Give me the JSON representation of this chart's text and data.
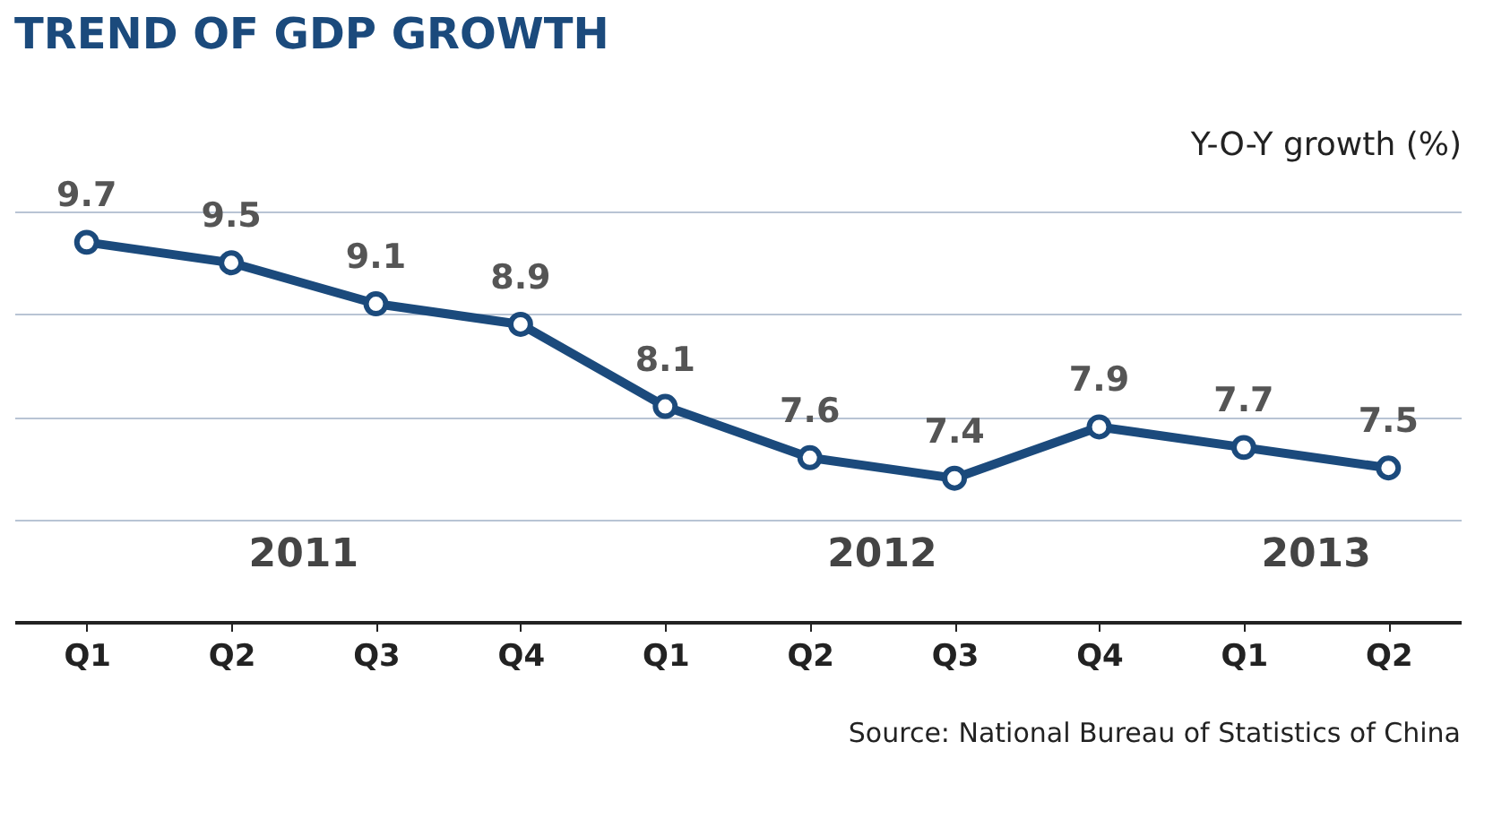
{
  "chart_data": {
    "type": "line",
    "title": "TREND OF GDP GROWTH",
    "ylabel": "Y-O-Y growth (%)",
    "categories": [
      "Q1",
      "Q2",
      "Q3",
      "Q4",
      "Q1",
      "Q2",
      "Q3",
      "Q4",
      "Q1",
      "Q2"
    ],
    "series": [
      {
        "color": "#1b4a7c",
        "values": [
          9.7,
          9.5,
          9.1,
          8.9,
          8.1,
          7.6,
          7.4,
          7.9,
          7.7,
          7.5
        ]
      }
    ],
    "ylim": [
      6,
      10
    ],
    "yticks": [
      {
        "value": 7,
        "label": null
      },
      {
        "value": 8,
        "label": null
      },
      {
        "value": 9,
        "label": null
      },
      {
        "value": 10,
        "label": null
      }
    ],
    "grid": "y",
    "marker": "circle",
    "line_style": "solid",
    "data_labels": true,
    "tick_labels": "x",
    "annotations": [
      "2011",
      "2012",
      "2013",
      "Source: National Bureau of Statistics of China"
    ]
  }
}
